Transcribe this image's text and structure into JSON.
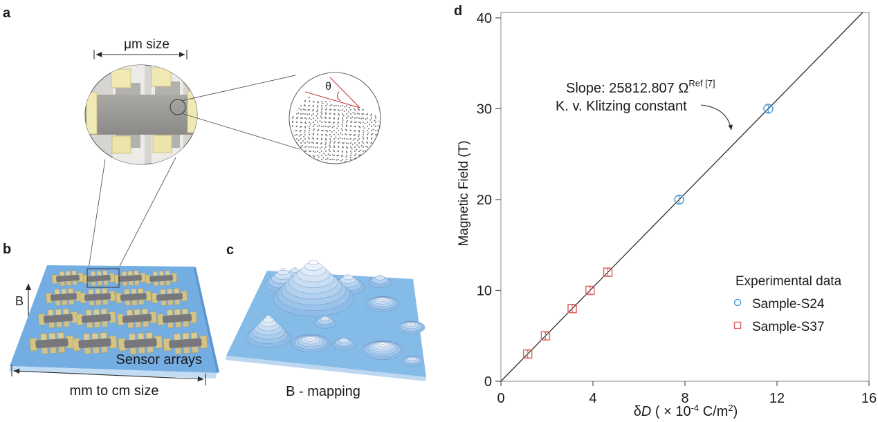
{
  "panels": {
    "a": {
      "label": "a",
      "scale_label": "μm size",
      "twist_angle_label": "θ"
    },
    "b": {
      "label": "b",
      "field_arrow_label": "B",
      "array_caption": "Sensor arrays",
      "size_caption": "mm to cm size"
    },
    "c": {
      "label": "c",
      "caption": "B - mapping"
    },
    "d": {
      "label": "d"
    }
  },
  "chart_data": {
    "type": "scatter",
    "title": "",
    "xlabel": "δD ( × 10⁻⁴ C/m²)",
    "xlabel_parts": {
      "delta": "δ",
      "var": "D",
      "open": " ( × 10",
      "exp": "-4",
      "unit": " C/m",
      "exp2": "2",
      "close": ")"
    },
    "ylabel": "Magnetic Field (T)",
    "xlim": [
      0,
      16
    ],
    "ylim": [
      0,
      40
    ],
    "xticks": [
      0,
      4,
      8,
      12,
      16
    ],
    "yticks": [
      0,
      10,
      20,
      30,
      40
    ],
    "grid": false,
    "fit_line": {
      "slope_label": "25812.807",
      "slope_T_per_unit": 2.58128,
      "intercept": 0
    },
    "annotation": {
      "line1": "Slope: 25812.807 Ω",
      "superscript": "Ref [7]",
      "line2": "K. v. Klitzing constant"
    },
    "legend": {
      "title": "Experimental data",
      "position": "lower right",
      "entries": [
        {
          "label": "Sample-S24",
          "marker": "circle",
          "color": "#4d9bd5"
        },
        {
          "label": "Sample-S37",
          "marker": "square",
          "color": "#e06666"
        }
      ]
    },
    "series": [
      {
        "name": "Sample-S24",
        "marker": "circle",
        "color": "#4d9bd5",
        "points": [
          {
            "x": 7.748,
            "y": 20
          },
          {
            "x": 11.622,
            "y": 30
          }
        ]
      },
      {
        "name": "Sample-S37",
        "marker": "square",
        "color": "#e06666",
        "points": [
          {
            "x": 1.162,
            "y": 3
          },
          {
            "x": 1.937,
            "y": 5
          },
          {
            "x": 3.099,
            "y": 8
          },
          {
            "x": 3.874,
            "y": 10
          },
          {
            "x": 4.649,
            "y": 12
          }
        ]
      }
    ]
  },
  "colors": {
    "fit_line": "#2b2b2b",
    "axis_frame": "#a9a9a9",
    "substrate_blue": "#74ade2",
    "bmap_plate_blue": "#85bbe7",
    "gold_pad": "#d5c383",
    "device_gray": "#77777c",
    "annotation_red": "#c43c3c"
  }
}
